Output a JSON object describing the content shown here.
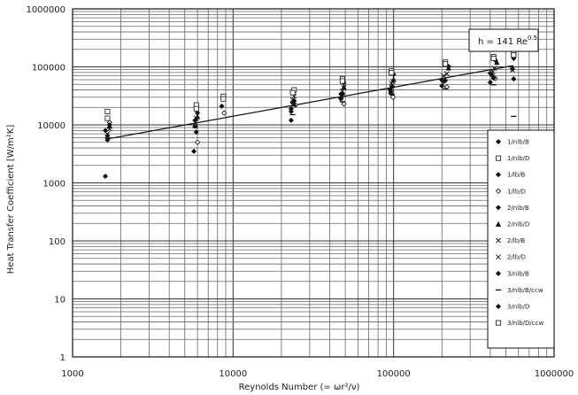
{
  "chart_data": {
    "type": "scatter",
    "title": "",
    "xlabel": "Reynolds Number (= ωr²/ν)",
    "ylabel": "Heat Transfer Coefficient [W/m²K]",
    "x_scale": "log",
    "y_scale": "log",
    "xlim": [
      1000,
      1000000
    ],
    "ylim": [
      1,
      1000000
    ],
    "x_ticks": [
      "1000",
      "10000",
      "100000",
      "1000000"
    ],
    "y_ticks": [
      "1",
      "10",
      "100",
      "1000",
      "10000",
      "100000",
      "1000000"
    ],
    "grid": true,
    "legend_position": "right",
    "annotation": {
      "text": "h = 141 Re",
      "sup": "0.5"
    },
    "fit_line": {
      "coefficient": 141,
      "exponent": 0.5,
      "x_range": [
        1600,
        560000
      ]
    },
    "series": [
      {
        "name": "1/nlb/B",
        "marker": "filled-diamond",
        "x": [
          1650,
          5800,
          23000,
          47000,
          95000,
          200000,
          400000,
          550000
        ],
        "y": [
          6500,
          9500,
          17000,
          29000,
          41000,
          59000,
          78000,
          92000
        ]
      },
      {
        "name": "1/nlb/D",
        "marker": "open-square",
        "x": [
          1650,
          5900,
          8700,
          24000,
          48000,
          97000,
          210000,
          420000,
          560000
        ],
        "y": [
          17000,
          22000,
          31000,
          40000,
          62000,
          85000,
          120000,
          150000,
          170000
        ]
      },
      {
        "name": "1/lb/B",
        "marker": "filled-diamond",
        "x": [
          1600,
          5800,
          8500,
          23500,
          47000,
          96000,
          205000,
          410000
        ],
        "y": [
          8000,
          12000,
          21000,
          24000,
          34000,
          38000,
          56000,
          72000
        ]
      },
      {
        "name": "1/lb/D",
        "marker": "open-diamond",
        "x": [
          1700,
          6000,
          8800,
          24500,
          49000,
          99000,
          215000,
          430000
        ],
        "y": [
          11000,
          5000,
          16000,
          22000,
          23000,
          30000,
          45000,
          63000
        ]
      },
      {
        "name": "2/nlb/B",
        "marker": "filled-diamond",
        "x": [
          1650,
          5900,
          23000,
          48000,
          98000,
          210000,
          420000
        ],
        "y": [
          5500,
          7500,
          19000,
          34000,
          46000,
          58000,
          64000
        ]
      },
      {
        "name": "2/nlb/D",
        "marker": "filled-triangle",
        "x": [
          1700,
          6000,
          24000,
          49000,
          100000,
          220000,
          440000
        ],
        "y": [
          9500,
          14000,
          23000,
          45000,
          61000,
          96000,
          120000
        ]
      },
      {
        "name": "2/lb/B",
        "marker": "x",
        "x": [
          1650,
          5800,
          23500,
          48000,
          97000,
          205000,
          415000,
          550000
        ],
        "y": [
          7000,
          11000,
          27000,
          38000,
          52000,
          70000,
          82000,
          88000
        ]
      },
      {
        "name": "2/lb/D",
        "marker": "x",
        "x": [
          1700,
          5900,
          24000,
          49000,
          99000,
          215000,
          425000
        ],
        "y": [
          8500,
          13000,
          31000,
          44000,
          56000,
          76000,
          94000
        ]
      },
      {
        "name": "3/nlb/B",
        "marker": "filled-diamond",
        "x": [
          1600,
          5700,
          23000,
          47000,
          96000,
          200000,
          400000,
          560000
        ],
        "y": [
          1300,
          3500,
          12000,
          28000,
          35000,
          47000,
          54000,
          62000
        ]
      },
      {
        "name": "3/nlb/B/ccw",
        "marker": "dash",
        "x": [
          1650,
          5800,
          23500,
          48000,
          98000,
          210000,
          420000,
          560000
        ],
        "y": [
          6000,
          9000,
          15000,
          25000,
          33000,
          42000,
          49000,
          14000
        ]
      },
      {
        "name": "3/nlb/D",
        "marker": "filled-diamond",
        "x": [
          1700,
          6000,
          24000,
          49000,
          100000,
          220000,
          430000,
          560000
        ],
        "y": [
          10000,
          16000,
          26000,
          53000,
          74000,
          102000,
          130000,
          140000
        ]
      },
      {
        "name": "3/nlb/D/ccw",
        "marker": "open-square",
        "x": [
          1650,
          5900,
          8700,
          23500,
          48000,
          97000,
          210000,
          420000,
          560000
        ],
        "y": [
          13000,
          19000,
          28000,
          36000,
          57000,
          79000,
          112000,
          140000,
          160000
        ]
      }
    ]
  }
}
